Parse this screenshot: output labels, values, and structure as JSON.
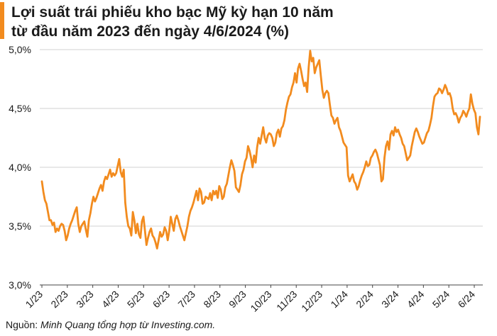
{
  "chart_data": {
    "type": "line",
    "title_line1": "Lợi suất trái phiếu kho bạc Mỹ kỳ hạn 10 năm",
    "title_line2": "từ đầu năm 2023 đến ngày 4/6/2024 (%)",
    "xlabel": "",
    "ylabel": "",
    "ylim": [
      3.0,
      5.0
    ],
    "yticks": [
      "5,0%",
      "4,5%",
      "4,0%",
      "3,5%",
      "3,0%"
    ],
    "ytick_values": [
      5.0,
      4.5,
      4.0,
      3.5,
      3.0
    ],
    "xticks": [
      "1/23",
      "2/23",
      "3/23",
      "4/23",
      "5/23",
      "6/23",
      "7/23",
      "8/23",
      "9/23",
      "10/23",
      "11/23",
      "12/23",
      "1/24",
      "2/24",
      "3/24",
      "4/24",
      "5/24",
      "6/24"
    ],
    "grid": true,
    "line_color": "#f28b1e",
    "series": [
      {
        "values": [
          3.88,
          3.79,
          3.72,
          3.69,
          3.62,
          3.55,
          3.55,
          3.51,
          3.53,
          3.45,
          3.48,
          3.46,
          3.5,
          3.52,
          3.51,
          3.46,
          3.38,
          3.42,
          3.48,
          3.52,
          3.55,
          3.59,
          3.63,
          3.66,
          3.52,
          3.45,
          3.5,
          3.52,
          3.54,
          3.47,
          3.41,
          3.55,
          3.61,
          3.69,
          3.75,
          3.71,
          3.74,
          3.78,
          3.82,
          3.85,
          3.8,
          3.88,
          3.92,
          3.9,
          3.94,
          3.98,
          3.92,
          3.95,
          3.93,
          3.95,
          4.01,
          4.07,
          3.96,
          3.92,
          3.98,
          3.7,
          3.58,
          3.5,
          3.48,
          3.42,
          3.62,
          3.55,
          3.44,
          3.52,
          3.43,
          3.4,
          3.54,
          3.58,
          3.46,
          3.34,
          3.4,
          3.45,
          3.48,
          3.42,
          3.4,
          3.36,
          3.31,
          3.38,
          3.45,
          3.41,
          3.43,
          3.49,
          3.46,
          3.38,
          3.46,
          3.58,
          3.52,
          3.46,
          3.56,
          3.59,
          3.55,
          3.5,
          3.46,
          3.42,
          3.38,
          3.44,
          3.5,
          3.58,
          3.63,
          3.66,
          3.7,
          3.75,
          3.8,
          3.72,
          3.82,
          3.79,
          3.69,
          3.7,
          3.75,
          3.74,
          3.73,
          3.78,
          3.72,
          3.8,
          3.77,
          3.8,
          3.74,
          3.84,
          3.81,
          3.73,
          3.75,
          3.83,
          3.86,
          3.93,
          4.0,
          4.06,
          4.02,
          3.97,
          3.83,
          3.81,
          3.79,
          3.85,
          3.94,
          3.98,
          4.05,
          4.08,
          4.18,
          4.14,
          4.08,
          4.0,
          4.1,
          4.04,
          4.17,
          4.25,
          4.2,
          4.27,
          4.34,
          4.25,
          4.21,
          4.27,
          4.29,
          4.28,
          4.25,
          4.18,
          4.21,
          4.29,
          4.32,
          4.26,
          4.33,
          4.35,
          4.4,
          4.49,
          4.55,
          4.6,
          4.62,
          4.68,
          4.72,
          4.8,
          4.72,
          4.84,
          4.88,
          4.82,
          4.75,
          4.69,
          4.72,
          4.64,
          4.85,
          4.99,
          4.9,
          4.93,
          4.8,
          4.85,
          4.88,
          4.91,
          4.78,
          4.66,
          4.59,
          4.63,
          4.65,
          4.63,
          4.53,
          4.44,
          4.42,
          4.37,
          4.4,
          4.42,
          4.34,
          4.31,
          4.26,
          4.21,
          4.19,
          4.17,
          3.93,
          3.88,
          3.91,
          3.94,
          3.88,
          3.86,
          3.81,
          3.84,
          3.89,
          3.93,
          3.96,
          4.0,
          4.05,
          4.01,
          4.02,
          4.08,
          4.1,
          4.13,
          4.15,
          4.12,
          4.07,
          4.02,
          3.88,
          3.9,
          4.08,
          4.18,
          4.22,
          4.15,
          4.28,
          4.31,
          4.27,
          4.34,
          4.3,
          4.32,
          4.28,
          4.25,
          4.2,
          4.18,
          4.12,
          4.06,
          4.08,
          4.1,
          4.18,
          4.24,
          4.3,
          4.33,
          4.3,
          4.26,
          4.23,
          4.2,
          4.21,
          4.25,
          4.29,
          4.31,
          4.36,
          4.42,
          4.52,
          4.6,
          4.62,
          4.63,
          4.67,
          4.66,
          4.63,
          4.66,
          4.7,
          4.67,
          4.62,
          4.63,
          4.59,
          4.5,
          4.45,
          4.46,
          4.43,
          4.38,
          4.42,
          4.44,
          4.48,
          4.46,
          4.43,
          4.47,
          4.5,
          4.62,
          4.54,
          4.49,
          4.46,
          4.34,
          4.28,
          4.43
        ]
      }
    ]
  },
  "source": {
    "label": "Nguồn:",
    "text": "Minh Quang tổng hợp từ Investing.com."
  }
}
